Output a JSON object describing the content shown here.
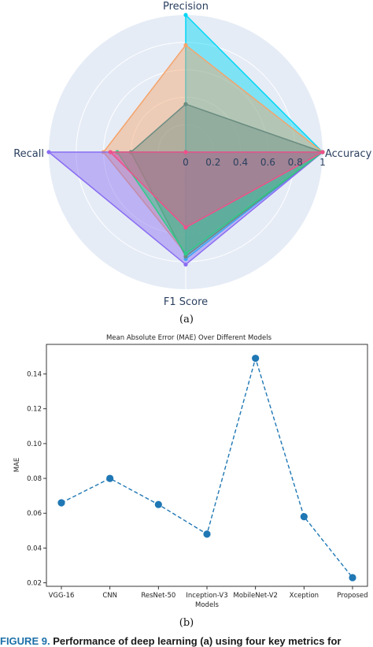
{
  "panel_a_caption": "(a)",
  "panel_b_caption": "(b)",
  "figure_caption": {
    "number": "FIGURE 9.",
    "text": "Performance of deep learning (a) using four key metrics for"
  },
  "colors": {
    "radar_bg": "#e5ecf6",
    "line_series": "#1f77b4"
  },
  "chart_data": [
    {
      "type": "radar",
      "axes": [
        "Precision",
        "Accuracy",
        "F1 Score",
        "Recall"
      ],
      "radial_ticks": [
        "0",
        "0.2",
        "0.4",
        "0.6",
        "0.8",
        "1"
      ],
      "range": [
        0,
        1
      ],
      "grid": true,
      "series": [
        {
          "color": "#00d6f5",
          "values": [
            1.0,
            1.0,
            0.78,
            0.0
          ]
        },
        {
          "color": "#f5a46a",
          "values": [
            0.78,
            1.0,
            0.74,
            0.6
          ]
        },
        {
          "color": "#8a6cf2",
          "values": [
            0.0,
            1.0,
            0.82,
            1.0
          ]
        },
        {
          "color": "#6a8c80",
          "values": [
            0.35,
            1.0,
            0.76,
            0.4
          ]
        },
        {
          "color": "#2ecb8a",
          "values": [
            0.0,
            1.0,
            0.74,
            0.5
          ]
        },
        {
          "color": "#f0508a",
          "values": [
            0.0,
            1.0,
            0.55,
            0.55
          ]
        }
      ]
    },
    {
      "type": "line",
      "title": "Mean Absolute Error (MAE) Over Different Models",
      "xlabel": "Models",
      "ylabel": "MAE",
      "categories": [
        "VGG-16",
        "CNN",
        "ResNet-50",
        "Inception-V3",
        "MobileNet-V2",
        "Xception",
        "Proposed"
      ],
      "values": [
        0.066,
        0.08,
        0.065,
        0.048,
        0.149,
        0.058,
        0.023
      ],
      "yticks": [
        "0.02",
        "0.04",
        "0.06",
        "0.08",
        "0.10",
        "0.12",
        "0.14"
      ],
      "ylim": [
        0.018,
        0.157
      ],
      "grid": false,
      "line_style": "dashed",
      "marker": "circle"
    }
  ]
}
